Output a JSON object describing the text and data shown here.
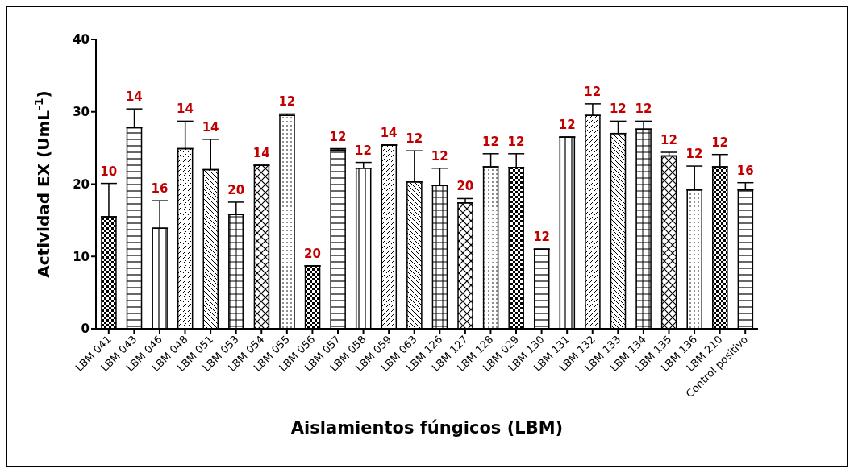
{
  "chart_data": {
    "type": "bar",
    "xlabel": "Aislamientos fúngicos (LBM)",
    "ylabel": "Actividad EX (UmL$^{-1}$)",
    "categories": [
      "LBM 041",
      "LBM 043",
      "LBM 046",
      "LBM 048",
      "LBM 051",
      "LBM 053",
      "LBM 054",
      "LBM 055",
      "LBM 056",
      "LBM 057",
      "LBM 058",
      "LBM 059",
      "LBM 063",
      "LBM 126",
      "LBM 127",
      "LBM 128",
      "LBM 029",
      "LBM 130",
      "LBM 131",
      "LBM 132",
      "LBM 133",
      "LBM 134",
      "LBM 135",
      "LBM 136",
      "LBM 210",
      "Control positivo"
    ],
    "values": [
      15.5,
      27.8,
      13.9,
      24.9,
      22.0,
      15.8,
      22.6,
      29.5,
      8.7,
      24.7,
      22.2,
      25.4,
      20.3,
      19.8,
      17.4,
      22.4,
      22.3,
      11.0,
      26.5,
      29.5,
      27.0,
      27.6,
      23.9,
      19.2,
      22.4,
      19.2
    ],
    "errors": [
      [
        15.5,
        20.1
      ],
      [
        27.8,
        30.4
      ],
      [
        13.9,
        17.7
      ],
      [
        24.9,
        28.7
      ],
      [
        22.0,
        26.2
      ],
      [
        15.8,
        17.5
      ],
      null,
      [
        29.5,
        29.7
      ],
      null,
      [
        24.7,
        24.9
      ],
      [
        22.2,
        23.0
      ],
      null,
      [
        20.3,
        24.6
      ],
      [
        19.8,
        22.2
      ],
      [
        17.4,
        18.0
      ],
      [
        22.4,
        24.2
      ],
      [
        22.3,
        24.2
      ],
      null,
      null,
      [
        29.5,
        31.1
      ],
      [
        27.0,
        28.7
      ],
      [
        27.6,
        28.7
      ],
      [
        23.9,
        24.4
      ],
      [
        19.2,
        22.5
      ],
      [
        22.4,
        24.1
      ],
      [
        19.2,
        20.2
      ]
    ],
    "color": "#000000",
    "ylim": [
      0,
      40
    ],
    "yticks": [
      0,
      10,
      20,
      30,
      40
    ],
    "grid": false,
    "legend": false,
    "annotations": [
      {
        "text": "10",
        "x": "LBM 041",
        "y": 20.1
      },
      {
        "text": "14",
        "x": "LBM 043",
        "y": 30.4
      },
      {
        "text": "16",
        "x": "LBM 046",
        "y": 17.7
      },
      {
        "text": "14",
        "x": "LBM 048",
        "y": 28.7
      },
      {
        "text": "14",
        "x": "LBM 051",
        "y": 26.2
      },
      {
        "text": "20",
        "x": "LBM 053",
        "y": 17.5
      },
      {
        "text": "14",
        "x": "LBM 054",
        "y": 22.6
      },
      {
        "text": "12",
        "x": "LBM 055",
        "y": 29.7
      },
      {
        "text": "20",
        "x": "LBM 056",
        "y": 8.7
      },
      {
        "text": "12",
        "x": "LBM 057",
        "y": 24.9
      },
      {
        "text": "12",
        "x": "LBM 058",
        "y": 23.0
      },
      {
        "text": "14",
        "x": "LBM 059",
        "y": 25.4
      },
      {
        "text": "12",
        "x": "LBM 063",
        "y": 24.6
      },
      {
        "text": "12",
        "x": "LBM 126",
        "y": 22.2
      },
      {
        "text": "20",
        "x": "LBM 127",
        "y": 18.0
      },
      {
        "text": "12",
        "x": "LBM 128",
        "y": 24.2
      },
      {
        "text": "12",
        "x": "LBM 029",
        "y": 24.2
      },
      {
        "text": "12",
        "x": "LBM 130",
        "y": 11.0
      },
      {
        "text": "12",
        "x": "LBM 131",
        "y": 26.5
      },
      {
        "text": "12",
        "x": "LBM 132",
        "y": 31.1
      },
      {
        "text": "12",
        "x": "LBM 133",
        "y": 28.7
      },
      {
        "text": "12",
        "x": "LBM 134",
        "y": 28.7
      },
      {
        "text": "12",
        "x": "LBM 135",
        "y": 24.4
      },
      {
        "text": "12",
        "x": "LBM 136",
        "y": 22.5
      },
      {
        "text": "12",
        "x": "LBM 210",
        "y": 24.1
      },
      {
        "text": "16",
        "x": "Control positivo",
        "y": 20.2
      }
    ]
  }
}
